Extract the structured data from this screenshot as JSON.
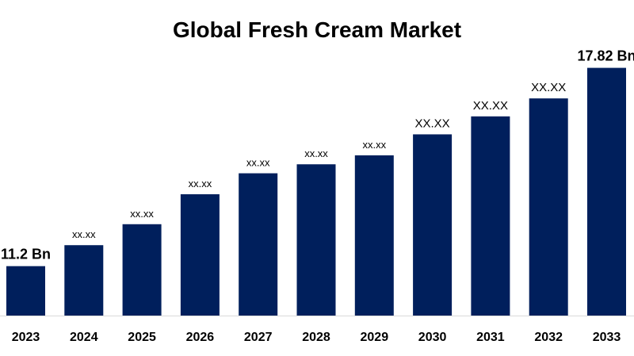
{
  "chart_data": {
    "type": "bar",
    "title": "Global Fresh Cream Market",
    "xlabel": "",
    "ylabel": "",
    "categories": [
      "2023",
      "2024",
      "2025",
      "2026",
      "2027",
      "2028",
      "2029",
      "2030",
      "2031",
      "2032",
      "2033"
    ],
    "values": [
      11.2,
      11.9,
      12.6,
      13.6,
      14.3,
      14.6,
      14.9,
      15.6,
      16.2,
      16.8,
      17.82
    ],
    "data_labels": [
      "11.2 Bn",
      "xx.xx",
      "xx.xx",
      "xx.xx",
      "xx.xx",
      "xx.xx",
      "xx.xx",
      "XX.XX",
      "XX.XX",
      "XX.XX",
      "17.82 Bn"
    ],
    "ylim": [
      9.55,
      18.1
    ],
    "grid": false,
    "legend": "none",
    "bar_color": "#001f5c"
  }
}
